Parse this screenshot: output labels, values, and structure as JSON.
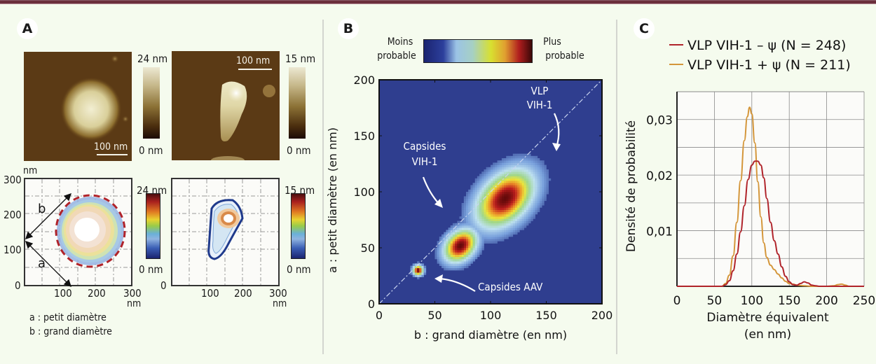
{
  "panels": {
    "A": {
      "letter": "A",
      "afm_left": {
        "colorbar_max": "24 nm",
        "colorbar_min": "0 nm",
        "scalebar": "100 nm"
      },
      "afm_right": {
        "colorbar_max": "15 nm",
        "colorbar_min": "0 nm",
        "scalebar": "100 nm"
      },
      "contour_left": {
        "unit_top": "nm",
        "unit_right": "nm",
        "y_ticks": [
          "300",
          "200",
          "100",
          "0"
        ],
        "x_ticks": [
          "100",
          "200",
          "300"
        ],
        "colorbar_max": "24 nm",
        "colorbar_min": "0 nm",
        "label_a": "a",
        "label_b": "b"
      },
      "contour_right": {
        "unit_right": "nm",
        "y_ticks": [
          "0"
        ],
        "x_ticks": [
          "100",
          "200",
          "300"
        ],
        "colorbar_max": "15 nm",
        "colorbar_min": "0 nm"
      },
      "legend": [
        "a : petit diamètre",
        "b : grand diamètre"
      ]
    },
    "B": {
      "letter": "B",
      "colorbar_left": [
        "Moins",
        "probable"
      ],
      "colorbar_right": [
        "Plus",
        "probable"
      ],
      "annotations": {
        "vlp": [
          "VLP",
          "VIH-1"
        ],
        "capsides_vih": [
          "Capsides",
          "VIH-1"
        ],
        "capsides_aav": "Capsides AAV"
      }
    },
    "C": {
      "letter": "C"
    }
  },
  "colors": {
    "background": "#f5fbee",
    "heatmap_bg": "#2f3e8f",
    "series_minus": "#b0232a",
    "series_plus": "#d4963a"
  },
  "chart_data": [
    {
      "type": "heatmap",
      "title": "",
      "xlabel": "b : grand diamètre (en nm)",
      "ylabel": "a : petit diamètre (en nm)",
      "xlim": [
        0,
        200
      ],
      "ylim": [
        0,
        200
      ],
      "x_ticks": [
        "0",
        "50",
        "100",
        "150",
        "200"
      ],
      "y_ticks": [
        "0",
        "50",
        "100",
        "150",
        "200"
      ],
      "diagonal_line": true,
      "clusters": [
        {
          "name": "Capsides AAV",
          "b": 35,
          "a": 30,
          "spread_b": 3,
          "spread_a": 3,
          "peak": 1.0
        },
        {
          "name": "Capsides VIH-1",
          "b": 73,
          "a": 52,
          "spread_b": 11,
          "spread_a": 8,
          "peak": 1.0
        },
        {
          "name": "VLP VIH-1",
          "b": 113,
          "a": 94,
          "spread_b": 20,
          "spread_a": 13,
          "peak": 1.0
        }
      ]
    },
    {
      "type": "line",
      "title": "",
      "xlabel": "Diamètre équivalent (en nm)",
      "xlabel_lines": [
        "Diamètre équivalent",
        "(en nm)"
      ],
      "ylabel": "Densité de probabilité",
      "xlim": [
        0,
        250
      ],
      "ylim": [
        0,
        0.035
      ],
      "x_ticks": [
        "0",
        "50",
        "100",
        "150",
        "200",
        "250"
      ],
      "y_ticks": [
        {
          "value": 0.01,
          "label": "0,01"
        },
        {
          "value": 0.02,
          "label": "0,02"
        },
        {
          "value": 0.03,
          "label": "0,03"
        }
      ],
      "grid": true,
      "legend_position": "top",
      "series": [
        {
          "name": "VLP VIH-1 − ψ (N = 248)",
          "legend_prefix": "VLP VIH-1 – ψ",
          "legend_suffix": "(N = 248)",
          "color": "#b0232a",
          "x": [
            0,
            60,
            65,
            70,
            75,
            80,
            85,
            90,
            95,
            100,
            104,
            108,
            112,
            116,
            120,
            125,
            130,
            135,
            140,
            145,
            150,
            155,
            160,
            165,
            170,
            175,
            180,
            185,
            190,
            200,
            250
          ],
          "y": [
            0,
            0,
            0.0003,
            0.001,
            0.0028,
            0.0058,
            0.0098,
            0.0145,
            0.0192,
            0.0218,
            0.0225,
            0.0225,
            0.0218,
            0.0195,
            0.0158,
            0.0115,
            0.0082,
            0.0058,
            0.0035,
            0.0018,
            0.0008,
            0.0003,
            0.0002,
            0.0005,
            0.0008,
            0.0006,
            0.0002,
            0.0001,
            0,
            0,
            0
          ]
        },
        {
          "name": "VLP VIH-1 + ψ (N = 211)",
          "legend_prefix": "VLP VIH-1 + ψ",
          "legend_suffix": "(N = 211)",
          "color": "#d4963a",
          "x": [
            0,
            60,
            65,
            70,
            75,
            80,
            85,
            90,
            94,
            97,
            100,
            104,
            108,
            112,
            116,
            120,
            125,
            130,
            135,
            140,
            145,
            150,
            155,
            160,
            170,
            180,
            200,
            210,
            215,
            220,
            225,
            230,
            250
          ],
          "y": [
            0,
            0,
            0.0005,
            0.002,
            0.0055,
            0.0115,
            0.019,
            0.0262,
            0.0305,
            0.0322,
            0.031,
            0.0258,
            0.0188,
            0.0125,
            0.0078,
            0.0052,
            0.0038,
            0.003,
            0.0022,
            0.0015,
            0.0009,
            0.0005,
            0.0004,
            0.0002,
            0.0001,
            0,
            0,
            0.0001,
            0.0003,
            0.0004,
            0.0002,
            0,
            0
          ]
        }
      ]
    }
  ]
}
